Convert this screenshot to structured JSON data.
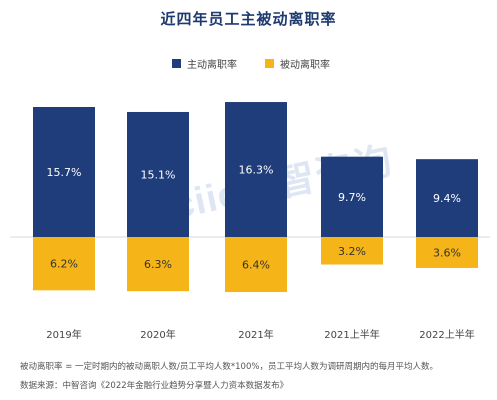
{
  "chart_data": {
    "type": "bar",
    "title": "近四年员工主被动离职率",
    "categories": [
      "2019年",
      "2020年",
      "2021年",
      "2021上半年",
      "2022上半年"
    ],
    "series": [
      {
        "name": "主动离职率",
        "values": [
          15.7,
          15.1,
          16.3,
          9.7,
          9.4
        ],
        "labels": [
          "15.7%",
          "15.1%",
          "16.3%",
          "9.7%",
          "9.4%"
        ],
        "color": "#1f3d7a"
      },
      {
        "name": "被动离职率",
        "values": [
          6.2,
          6.3,
          6.4,
          3.2,
          3.6
        ],
        "labels": [
          "6.2%",
          "6.3%",
          "6.4%",
          "3.2%",
          "3.6%"
        ],
        "color": "#f5b418"
      }
    ],
    "layout_note": "active bars extend above baseline, passive bars extend below",
    "grid": false,
    "legend": "top"
  },
  "watermark": "ciic中智咨询",
  "notes": {
    "definition": "被动离职率 = 一定时期内的被动离职人数/员工平均人数*100%，员工平均人数为调研周期内的每月平均人数。",
    "source": "数据来源：中智咨询《2022年金融行业趋势分享暨人力资本数据发布》"
  }
}
